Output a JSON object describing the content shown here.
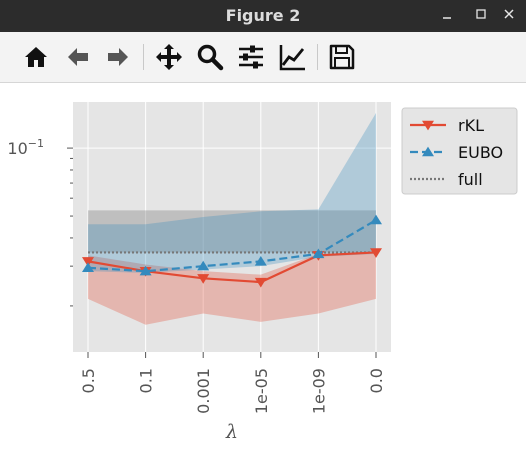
{
  "window": {
    "title": "Figure 2",
    "controls": {
      "minimize": "✕",
      "maximize": "□",
      "close": "✕"
    }
  },
  "toolbar": {
    "tools": [
      {
        "name": "home-icon",
        "label": "Home"
      },
      {
        "name": "back-icon",
        "label": "Back"
      },
      {
        "name": "forward-icon",
        "label": "Forward"
      },
      {
        "name": "pan-icon",
        "label": "Pan"
      },
      {
        "name": "zoom-icon",
        "label": "Zoom"
      },
      {
        "name": "configure-subplots-icon",
        "label": "Configure subplots"
      },
      {
        "name": "edit-axis-icon",
        "label": "Edit axis"
      },
      {
        "name": "save-icon",
        "label": "Save"
      }
    ]
  },
  "chart_data": {
    "type": "line",
    "xlabel": "λ",
    "ylabel": "",
    "categories": [
      "0.5",
      "0.1",
      "0.001",
      "1e-05",
      "1e-09",
      "0.0"
    ],
    "y_scale": "log",
    "ylim": [
      0.0125,
      0.16
    ],
    "yticks": [
      {
        "value": 0.1,
        "label": "10",
        "exponent": "−1"
      }
    ],
    "minor_yticks": [
      0.02,
      0.03,
      0.04,
      0.05,
      0.06,
      0.07,
      0.08,
      0.09
    ],
    "grid": true,
    "legend_position": "outside top-right",
    "series": [
      {
        "name": "rKL",
        "color": "#e24a33",
        "marker": "triangle-down",
        "linestyle": "solid",
        "values": [
          0.0315,
          0.0285,
          0.0265,
          0.0255,
          0.0335,
          0.0345
        ],
        "band_low": [
          0.0215,
          0.0165,
          0.0185,
          0.017,
          0.0185,
          0.0215
        ],
        "band_high": [
          0.0335,
          0.0305,
          0.0285,
          0.0275,
          0.034,
          0.034
        ]
      },
      {
        "name": "EUBO",
        "color": "#348abd",
        "marker": "triangle-up",
        "linestyle": "dashed",
        "values": [
          0.0295,
          0.0285,
          0.03,
          0.0315,
          0.034,
          0.048
        ],
        "band_low": [
          0.0285,
          0.028,
          0.029,
          0.03,
          0.033,
          0.034
        ],
        "band_high": [
          0.046,
          0.046,
          0.0495,
          0.0525,
          0.0535,
          0.143
        ]
      },
      {
        "name": "full",
        "color": "#777777",
        "marker": "none",
        "linestyle": "dotted",
        "values": [
          0.0345,
          0.0345,
          0.0345,
          0.0345,
          0.0345,
          0.0345
        ],
        "band_low": [
          0.0345,
          0.0345,
          0.0345,
          0.0345,
          0.0345,
          0.0345
        ],
        "band_high": [
          0.053,
          0.053,
          0.053,
          0.053,
          0.053,
          0.053
        ]
      }
    ]
  }
}
